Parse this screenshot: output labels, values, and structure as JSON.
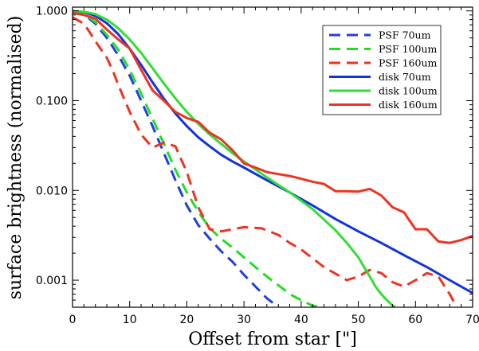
{
  "chart_data": {
    "type": "line",
    "xlabel": "Offset from star [\"]",
    "ylabel": "surface brightness (normalised)",
    "xlim": [
      0,
      70
    ],
    "ylim": [
      0.0005,
      1.1
    ],
    "yscale": "log",
    "xticks": [
      0,
      10,
      20,
      30,
      40,
      50,
      60,
      70
    ],
    "xtick_labels": [
      "0",
      "10",
      "20",
      "30",
      "40",
      "50",
      "60",
      "70"
    ],
    "yticks": [
      0.001,
      0.01,
      0.1,
      1.0
    ],
    "ytick_labels": [
      "0.001",
      "0.010",
      "0.100",
      "1.000"
    ],
    "grid": false,
    "legend_position": "top-right",
    "series": [
      {
        "name": "PSF 70um",
        "color": "#1f3fe0",
        "dash": true,
        "x": [
          0,
          2,
          4,
          6,
          8,
          10,
          12,
          14,
          16,
          18,
          20,
          22,
          24,
          26,
          28,
          30,
          32,
          34,
          36
        ],
        "y": [
          1.0,
          0.92,
          0.72,
          0.5,
          0.32,
          0.19,
          0.1,
          0.052,
          0.026,
          0.013,
          0.0068,
          0.0041,
          0.0029,
          0.0021,
          0.0016,
          0.00115,
          0.00085,
          0.00063,
          0.0005
        ]
      },
      {
        "name": "PSF 100um",
        "color": "#22dd22",
        "dash": true,
        "x": [
          0,
          2,
          4,
          6,
          8,
          10,
          12,
          14,
          16,
          18,
          20,
          22,
          24,
          26,
          28,
          30,
          32,
          34,
          36,
          38,
          40,
          42,
          44
        ],
        "y": [
          1.0,
          0.93,
          0.75,
          0.54,
          0.37,
          0.22,
          0.12,
          0.063,
          0.033,
          0.017,
          0.0095,
          0.0058,
          0.0038,
          0.0029,
          0.0023,
          0.0018,
          0.0014,
          0.0011,
          0.00088,
          0.0007,
          0.0006,
          0.00052,
          0.0005
        ]
      },
      {
        "name": "PSF 160um",
        "color": "#ee3322",
        "dash": true,
        "x": [
          0,
          2,
          3,
          4,
          5,
          6,
          7,
          8,
          10,
          12,
          14,
          16,
          18,
          20,
          22,
          24,
          26,
          28,
          30,
          33,
          36,
          38,
          40,
          44,
          48,
          50,
          52,
          54,
          56,
          58,
          60,
          62,
          64,
          66,
          68
        ],
        "y": [
          0.85,
          0.72,
          0.58,
          0.46,
          0.37,
          0.3,
          0.22,
          0.15,
          0.075,
          0.042,
          0.03,
          0.034,
          0.031,
          0.016,
          0.0065,
          0.0037,
          0.0035,
          0.0037,
          0.0039,
          0.0038,
          0.0032,
          0.0026,
          0.0022,
          0.0014,
          0.001,
          0.0011,
          0.0013,
          0.0012,
          0.00095,
          0.00085,
          0.001,
          0.0012,
          0.0011,
          0.0007,
          0.0004
        ]
      },
      {
        "name": "disk 70um",
        "color": "#1133dd",
        "dash": false,
        "x": [
          0,
          2,
          4,
          6,
          8,
          10,
          12,
          14,
          16,
          18,
          20,
          22,
          24,
          26,
          28,
          30,
          34,
          38,
          42,
          46,
          50,
          54,
          58,
          62,
          66,
          70
        ],
        "y": [
          1.0,
          0.97,
          0.88,
          0.73,
          0.55,
          0.38,
          0.25,
          0.16,
          0.105,
          0.072,
          0.052,
          0.039,
          0.031,
          0.025,
          0.021,
          0.018,
          0.013,
          0.0095,
          0.0068,
          0.0048,
          0.0035,
          0.0026,
          0.0019,
          0.0014,
          0.001,
          0.00072
        ]
      },
      {
        "name": "disk 100um",
        "color": "#33dd33",
        "dash": false,
        "x": [
          0,
          2,
          4,
          6,
          8,
          10,
          12,
          14,
          16,
          18,
          20,
          22,
          24,
          26,
          28,
          30,
          34,
          38,
          42,
          46,
          48,
          50,
          52,
          53,
          54,
          55,
          56,
          56.5
        ],
        "y": [
          1.0,
          0.98,
          0.92,
          0.8,
          0.64,
          0.48,
          0.34,
          0.23,
          0.155,
          0.106,
          0.075,
          0.055,
          0.042,
          0.033,
          0.026,
          0.021,
          0.014,
          0.0095,
          0.0062,
          0.0036,
          0.0026,
          0.0018,
          0.0011,
          0.00085,
          0.0007,
          0.0006,
          0.00052,
          0.0005
        ]
      },
      {
        "name": "disk 160um",
        "color": "#ee3322",
        "dash": false,
        "x": [
          0,
          2,
          4,
          6,
          8,
          10,
          12,
          14,
          16,
          18,
          20,
          22,
          24,
          26,
          28,
          30,
          32,
          34,
          36,
          38,
          40,
          42,
          44,
          46,
          48,
          50,
          52,
          54,
          56,
          58,
          60,
          62,
          64,
          66,
          68,
          70
        ],
        "y": [
          0.95,
          0.9,
          0.82,
          0.62,
          0.48,
          0.38,
          0.22,
          0.13,
          0.1,
          0.075,
          0.064,
          0.058,
          0.044,
          0.037,
          0.028,
          0.02,
          0.018,
          0.016,
          0.0152,
          0.0145,
          0.0135,
          0.0125,
          0.0118,
          0.0098,
          0.0098,
          0.0097,
          0.0104,
          0.0088,
          0.0065,
          0.0057,
          0.0037,
          0.0037,
          0.0027,
          0.0026,
          0.0028,
          0.0031
        ]
      }
    ]
  }
}
